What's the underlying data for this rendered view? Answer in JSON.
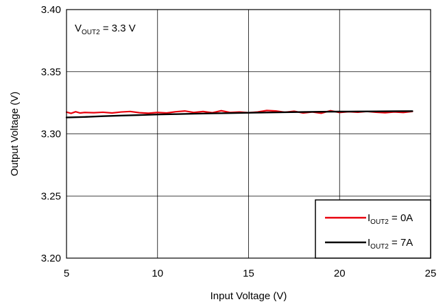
{
  "chart_data": {
    "type": "line",
    "title": "",
    "xlabel": "Input Voltage (V)",
    "ylabel": "Output Voltage (V)",
    "xlim": [
      5,
      25
    ],
    "ylim": [
      3.2,
      3.4
    ],
    "xticks": [
      5,
      10,
      15,
      20,
      25
    ],
    "xtick_labels": [
      "5",
      "10",
      "15",
      "20",
      "25"
    ],
    "yticks": [
      3.2,
      3.25,
      3.3,
      3.35,
      3.4
    ],
    "ytick_labels": [
      "3.20",
      "3.25",
      "3.30",
      "3.35",
      "3.40"
    ],
    "grid": true,
    "annotation": {
      "main": "V",
      "sub": "OUT2",
      "rest": " = 3.3 V"
    },
    "legend_position": "bottom-right",
    "series": [
      {
        "legend_main": "I",
        "legend_sub": "OUT2",
        "legend_rest": " = 0A",
        "color": "#e8000b",
        "x": [
          5.0,
          5.25,
          5.5,
          5.75,
          6.0,
          6.5,
          7.0,
          7.5,
          8.0,
          8.5,
          9.0,
          9.5,
          10.0,
          10.5,
          11.0,
          11.5,
          12.0,
          12.5,
          13.0,
          13.5,
          14.0,
          14.5,
          15.0,
          15.5,
          16.0,
          16.5,
          17.0,
          17.5,
          18.0,
          18.5,
          19.0,
          19.5,
          20.0,
          20.5,
          21.0,
          21.5,
          22.0,
          22.5,
          23.0,
          23.5,
          24.0
        ],
        "y": [
          3.3175,
          3.3165,
          3.3178,
          3.3168,
          3.3172,
          3.317,
          3.3174,
          3.3168,
          3.3176,
          3.318,
          3.317,
          3.3166,
          3.3172,
          3.3168,
          3.3178,
          3.3184,
          3.3172,
          3.318,
          3.317,
          3.3186,
          3.3172,
          3.3176,
          3.317,
          3.3176,
          3.3188,
          3.3184,
          3.3174,
          3.3182,
          3.3168,
          3.3176,
          3.3166,
          3.3186,
          3.3172,
          3.3178,
          3.3174,
          3.318,
          3.3174,
          3.317,
          3.3176,
          3.3172,
          3.318
        ]
      },
      {
        "legend_main": "I",
        "legend_sub": "OUT2",
        "legend_rest": " = 7A",
        "color": "#000000",
        "x": [
          5.0,
          6.0,
          7.0,
          8.0,
          9.0,
          10.0,
          11.0,
          12.0,
          13.0,
          14.0,
          15.0,
          16.0,
          17.0,
          18.0,
          19.0,
          20.0,
          21.0,
          22.0,
          23.0,
          24.0
        ],
        "y": [
          3.3132,
          3.3136,
          3.3142,
          3.3147,
          3.3151,
          3.3156,
          3.3159,
          3.3162,
          3.3165,
          3.3167,
          3.317,
          3.3172,
          3.3174,
          3.3176,
          3.3178,
          3.3179,
          3.318,
          3.3181,
          3.3182,
          3.3183
        ]
      }
    ]
  }
}
